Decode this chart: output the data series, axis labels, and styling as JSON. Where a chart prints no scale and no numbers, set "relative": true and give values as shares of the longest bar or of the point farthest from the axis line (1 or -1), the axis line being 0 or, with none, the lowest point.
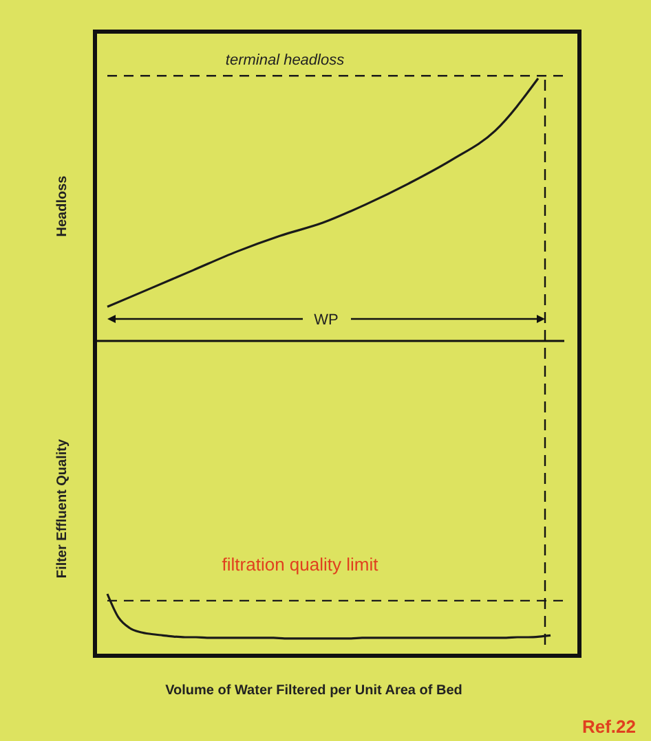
{
  "chart_data": [
    {
      "type": "line",
      "relative": true,
      "ylabel": "Headloss",
      "categories": [
        null,
        null,
        null,
        null,
        null,
        null,
        null,
        null,
        null,
        null,
        null
      ],
      "series": [
        {
          "color": "#1a1a1a",
          "values": [
            0.13,
            0.2,
            0.27,
            0.34,
            0.4,
            0.45,
            0.52,
            0.6,
            0.69,
            0.8,
            1.0
          ]
        }
      ],
      "ref_lines": [
        {
          "axis": "y",
          "value": 1.01,
          "label": "terminal headloss",
          "line_style": "dashed",
          "color": "#1a1a1a"
        }
      ],
      "annotations": [
        "WP"
      ],
      "grid": false,
      "marker": "none",
      "line_style": "solid"
    },
    {
      "type": "line",
      "relative": true,
      "ylabel": "Filter Effluent Quality",
      "xlabel": "Volume of Water Filtered per Unit Area of Bed",
      "categories": [
        null,
        null,
        null,
        null,
        null,
        null,
        null,
        null,
        null,
        null,
        null,
        null,
        null,
        null,
        null,
        null,
        null,
        null,
        null,
        null,
        null,
        null,
        null,
        null,
        null,
        null,
        null,
        null,
        null,
        null,
        null,
        null,
        null,
        null,
        null,
        null,
        null,
        null,
        null,
        null,
        null
      ],
      "series": [
        {
          "color": "#1a1a1a",
          "values": [
            1.0,
            0.62,
            0.45,
            0.38,
            0.35,
            0.33,
            0.31,
            0.3,
            0.3,
            0.29,
            0.29,
            0.29,
            0.29,
            0.29,
            0.29,
            0.29,
            0.28,
            0.28,
            0.28,
            0.28,
            0.28,
            0.28,
            0.28,
            0.29,
            0.29,
            0.29,
            0.29,
            0.29,
            0.29,
            0.29,
            0.29,
            0.29,
            0.29,
            0.29,
            0.29,
            0.29,
            0.29,
            0.3,
            0.3,
            0.31,
            0.33
          ]
        }
      ],
      "ref_lines": [
        {
          "axis": "y",
          "value": 0.89,
          "label": "filtration quality limit",
          "line_style": "dashed",
          "color": "#1a1a1a"
        }
      ],
      "annotations": [
        "Ref.22"
      ],
      "grid": false,
      "marker": "none",
      "line_style": "solid"
    }
  ]
}
